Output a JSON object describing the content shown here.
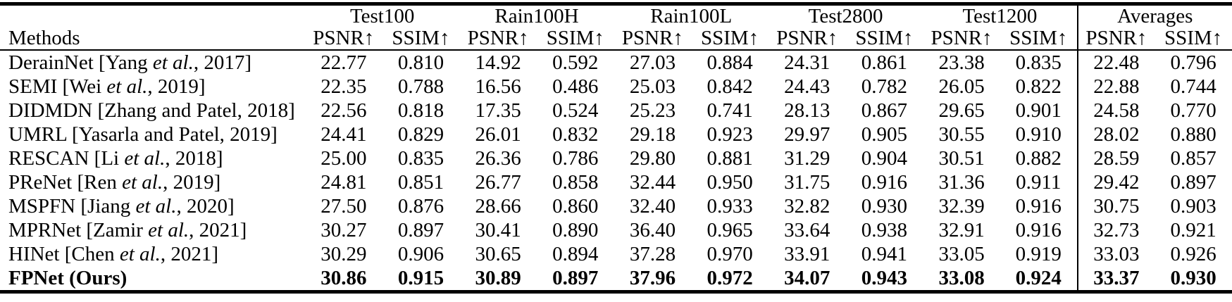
{
  "table": {
    "methods_label": "Methods",
    "groups": [
      "Test100",
      "Rain100H",
      "Rain100L",
      "Test2800",
      "Test1200",
      "Averages"
    ],
    "metric_headers": [
      "PSNR↑",
      "SSIM↑",
      "PSNR↑",
      "SSIM↑",
      "PSNR↑",
      "SSIM↑",
      "PSNR↑",
      "SSIM↑",
      "PSNR↑",
      "SSIM↑",
      "PSNR↑",
      "SSIM↑"
    ],
    "colors": {
      "text": "#000000",
      "rule": "#000000",
      "background": "#ffffff"
    },
    "rows": [
      {
        "method": {
          "pre": "DerainNet [Yang ",
          "italic": "et al.",
          "post": ", 2017]"
        },
        "values": [
          "22.77",
          "0.810",
          "14.92",
          "0.592",
          "27.03",
          "0.884",
          "24.31",
          "0.861",
          "23.38",
          "0.835",
          "22.48",
          "0.796"
        ],
        "bold": false
      },
      {
        "method": {
          "pre": "SEMI [Wei ",
          "italic": "et al.",
          "post": ", 2019]"
        },
        "values": [
          "22.35",
          "0.788",
          "16.56",
          "0.486",
          "25.03",
          "0.842",
          "24.43",
          "0.782",
          "26.05",
          "0.822",
          "22.88",
          "0.744"
        ],
        "bold": false
      },
      {
        "method": {
          "pre": "DIDMDN [Zhang and Patel, 2018]",
          "italic": "",
          "post": ""
        },
        "values": [
          "22.56",
          "0.818",
          "17.35",
          "0.524",
          "25.23",
          "0.741",
          "28.13",
          "0.867",
          "29.65",
          "0.901",
          "24.58",
          "0.770"
        ],
        "bold": false
      },
      {
        "method": {
          "pre": "UMRL [Yasarla and Patel, 2019]",
          "italic": "",
          "post": ""
        },
        "values": [
          "24.41",
          "0.829",
          "26.01",
          "0.832",
          "29.18",
          "0.923",
          "29.97",
          "0.905",
          "30.55",
          "0.910",
          "28.02",
          "0.880"
        ],
        "bold": false
      },
      {
        "method": {
          "pre": "RESCAN [Li ",
          "italic": "et al.",
          "post": ", 2018]"
        },
        "values": [
          "25.00",
          "0.835",
          "26.36",
          "0.786",
          "29.80",
          "0.881",
          "31.29",
          "0.904",
          "30.51",
          "0.882",
          "28.59",
          "0.857"
        ],
        "bold": false
      },
      {
        "method": {
          "pre": "PReNet [Ren ",
          "italic": "et al.",
          "post": ", 2019]"
        },
        "values": [
          "24.81",
          "0.851",
          "26.77",
          "0.858",
          "32.44",
          "0.950",
          "31.75",
          "0.916",
          "31.36",
          "0.911",
          "29.42",
          "0.897"
        ],
        "bold": false
      },
      {
        "method": {
          "pre": "MSPFN [Jiang ",
          "italic": "et al.",
          "post": ", 2020]"
        },
        "values": [
          "27.50",
          "0.876",
          "28.66",
          "0.860",
          "32.40",
          "0.933",
          "32.82",
          "0.930",
          "32.39",
          "0.916",
          "30.75",
          "0.903"
        ],
        "bold": false
      },
      {
        "method": {
          "pre": "MPRNet [Zamir ",
          "italic": "et al.",
          "post": ", 2021]"
        },
        "values": [
          "30.27",
          "0.897",
          "30.41",
          "0.890",
          "36.40",
          "0.965",
          "33.64",
          "0.938",
          "32.91",
          "0.916",
          "32.73",
          "0.921"
        ],
        "bold": false
      },
      {
        "method": {
          "pre": "HINet [Chen ",
          "italic": "et al.",
          "post": ", 2021]"
        },
        "values": [
          "30.29",
          "0.906",
          "30.65",
          "0.894",
          "37.28",
          "0.970",
          "33.91",
          "0.941",
          "33.05",
          "0.919",
          "33.03",
          "0.926"
        ],
        "bold": false
      },
      {
        "method": {
          "pre": "FPNet (Ours)",
          "italic": "",
          "post": ""
        },
        "values": [
          "30.86",
          "0.915",
          "30.89",
          "0.897",
          "37.96",
          "0.972",
          "34.07",
          "0.943",
          "33.08",
          "0.924",
          "33.37",
          "0.930"
        ],
        "bold": true
      }
    ]
  }
}
